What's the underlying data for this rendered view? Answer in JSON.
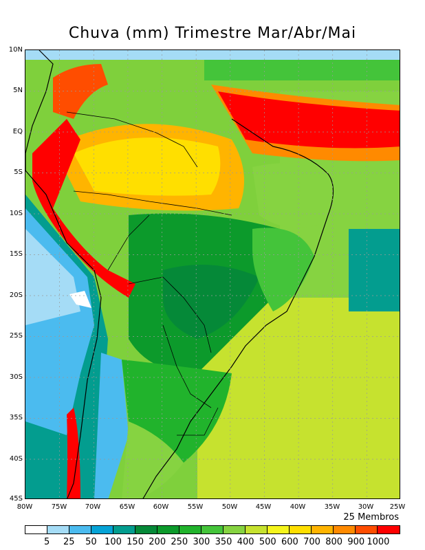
{
  "title": "Chuva (mm) Trimestre Mar/Abr/Mai",
  "members_note": "25 Membros",
  "lat_labels": [
    "10N",
    "5N",
    "EQ",
    "5S",
    "10S",
    "15S",
    "20S",
    "25S",
    "30S",
    "35S",
    "40S",
    "45S"
  ],
  "lon_labels": [
    "80W",
    "75W",
    "70W",
    "65W",
    "60W",
    "55W",
    "50W",
    "45W",
    "40W",
    "35W",
    "30W",
    "25W"
  ],
  "colorbar": {
    "colors": [
      "#ffffff",
      "#a5dcf6",
      "#4bbbef",
      "#05a3d6",
      "#039d8f",
      "#058938",
      "#0c9a2b",
      "#21b32c",
      "#44c43a",
      "#86d341",
      "#c6e22f",
      "#f5f51c",
      "#ffdf00",
      "#ffb400",
      "#ff8a00",
      "#ff4d00",
      "#ff0000"
    ],
    "labels": [
      "5",
      "25",
      "50",
      "100",
      "150",
      "200",
      "250",
      "300",
      "350",
      "400",
      "500",
      "600",
      "700",
      "800",
      "900",
      "1000"
    ]
  }
}
